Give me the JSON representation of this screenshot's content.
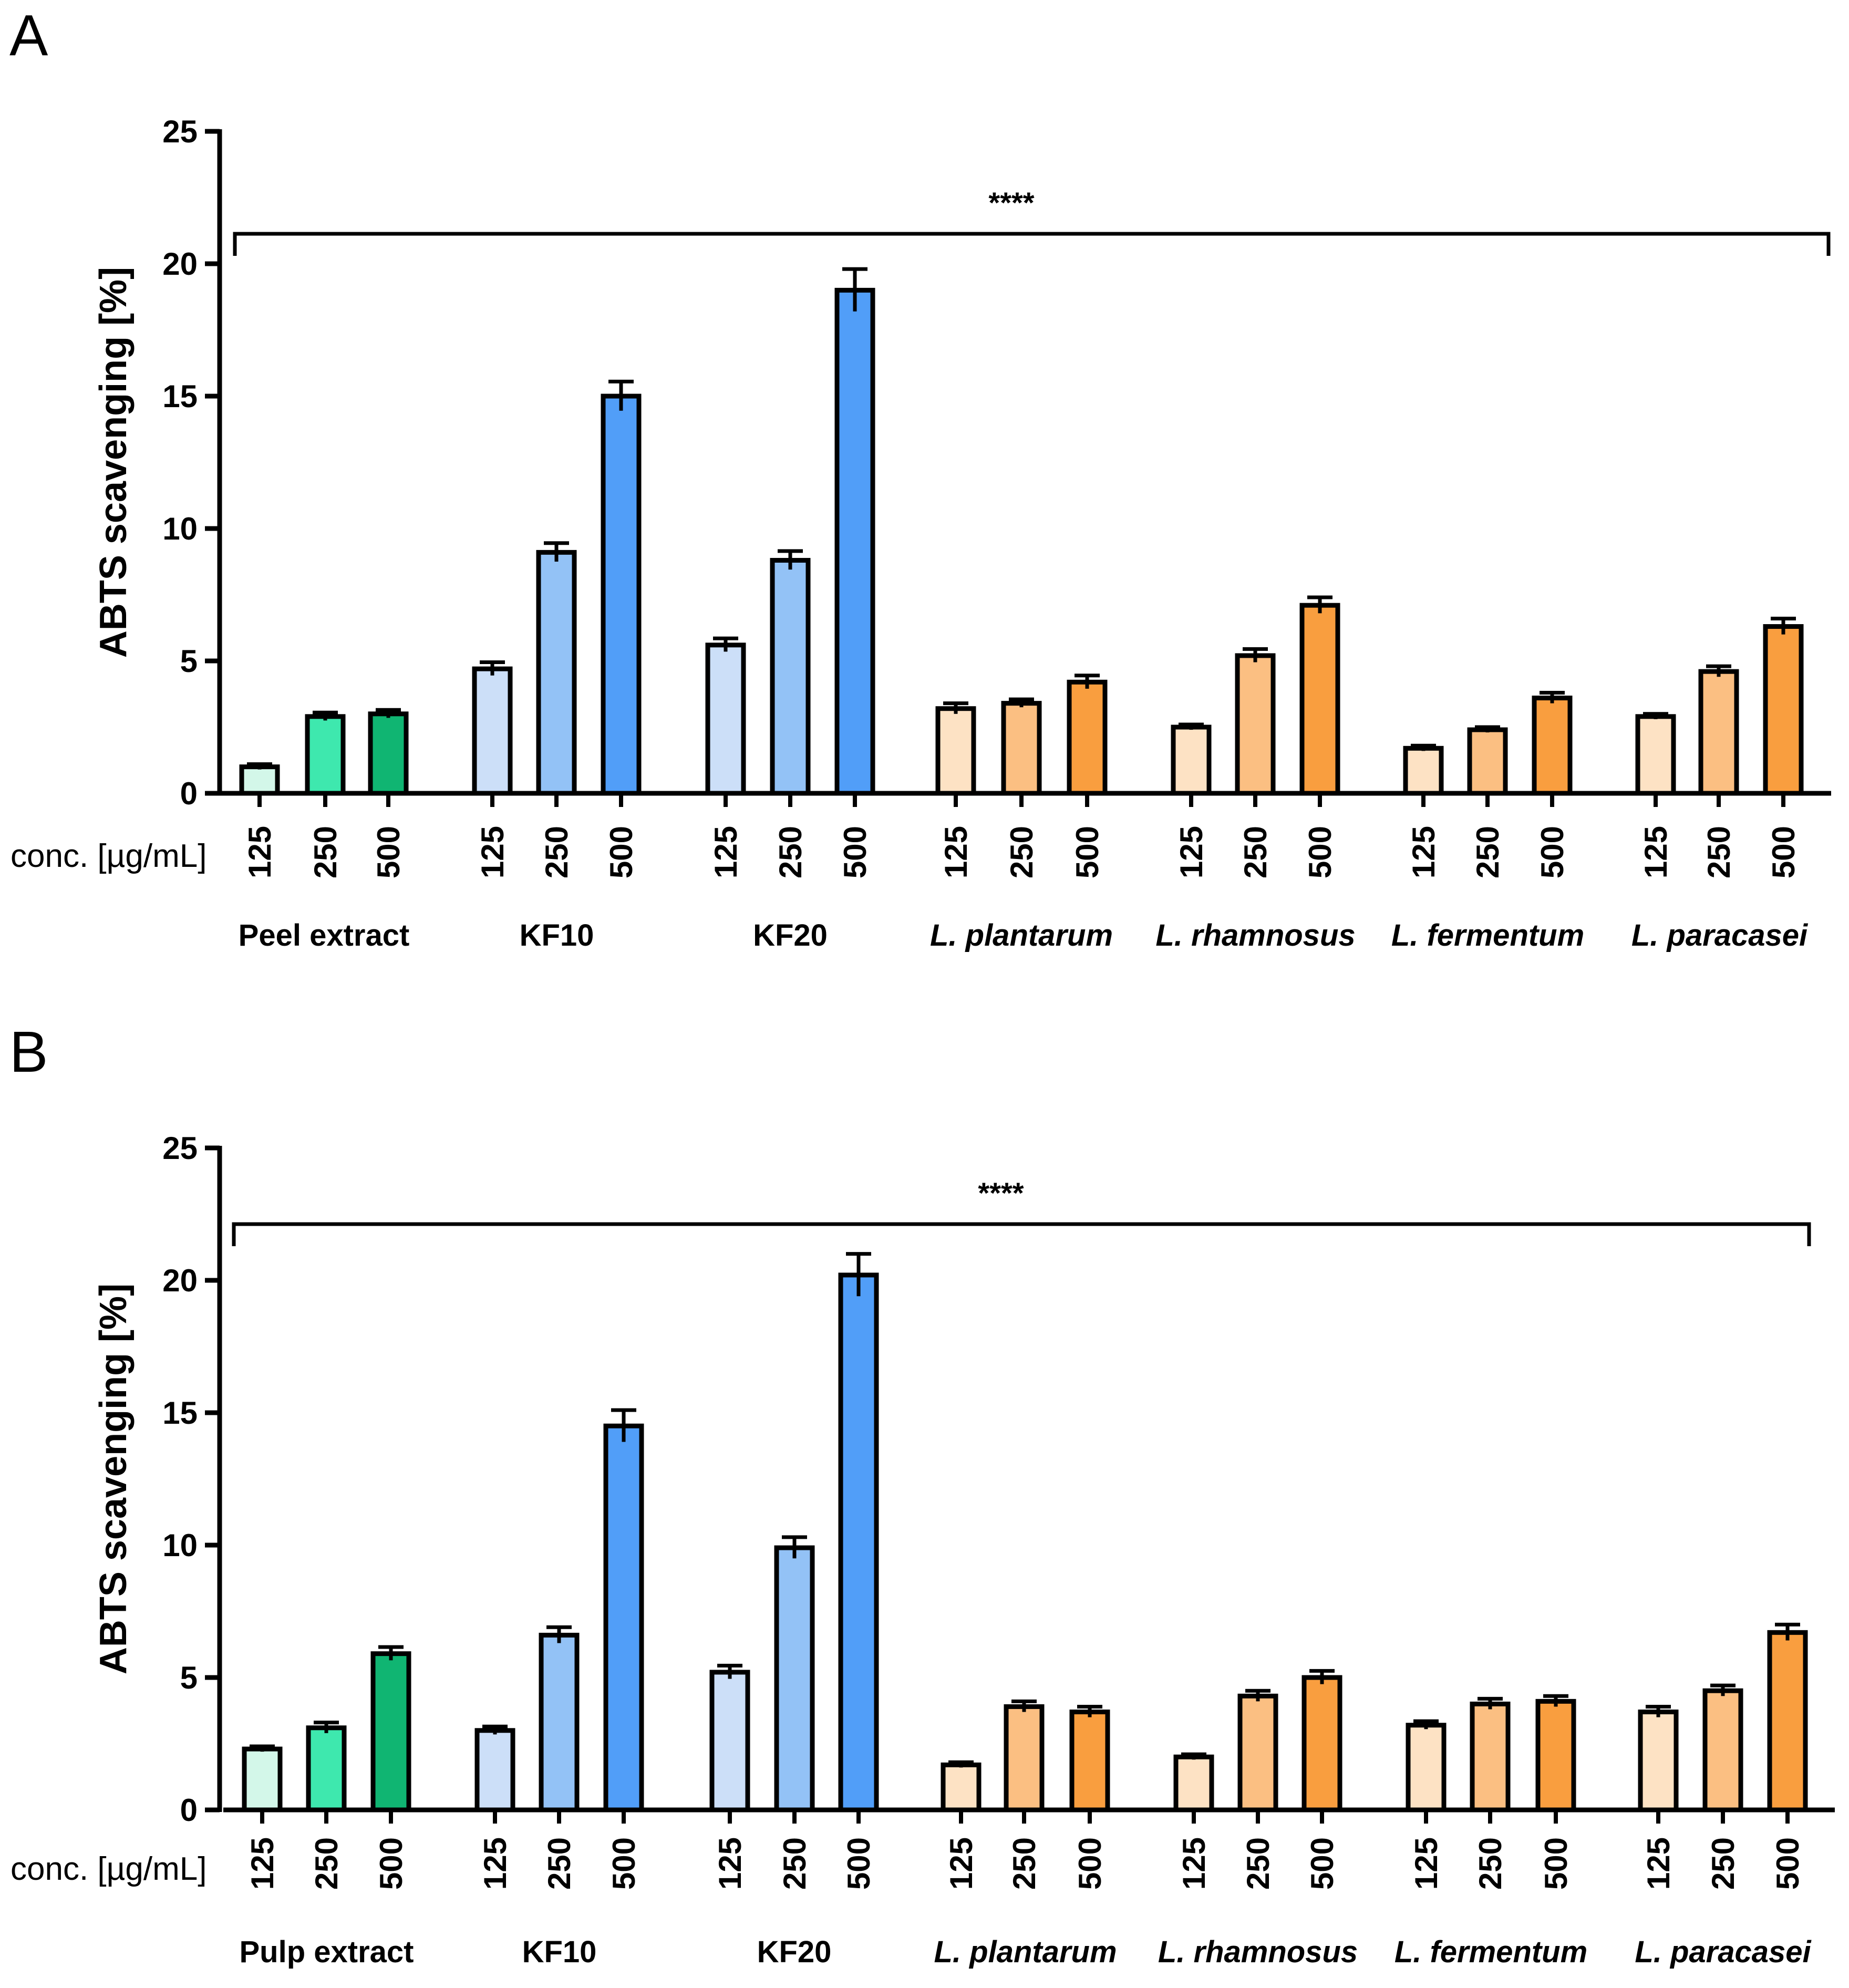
{
  "colors": {
    "green": [
      "#d3f7e9",
      "#3ee8ae",
      "#10b572"
    ],
    "blue": [
      "#ccdff8",
      "#93c2f6",
      "#519ef8"
    ],
    "orange": [
      "#fde2c4",
      "#fbbf82",
      "#f99e3f"
    ]
  },
  "chart_data": [
    {
      "type": "bar",
      "panel": "A",
      "ylabel": "ABTS scavenging [%]",
      "ylim": [
        0,
        25
      ],
      "yticks": [
        "0",
        "5",
        "10",
        "15",
        "20",
        "25"
      ],
      "conc_label": "conc. [µg/mL]",
      "significance": "****",
      "groups": [
        {
          "label": "Peel extract",
          "italic": false,
          "palette": "green",
          "concentrations": [
            "125",
            "250",
            "500"
          ],
          "values": [
            1.0,
            2.9,
            3.0
          ],
          "errors": [
            0.1,
            0.15,
            0.15
          ]
        },
        {
          "label": "KF10",
          "italic": false,
          "palette": "blue",
          "concentrations": [
            "125",
            "250",
            "500"
          ],
          "values": [
            4.7,
            9.1,
            15.0
          ],
          "errors": [
            0.25,
            0.35,
            0.55
          ]
        },
        {
          "label": "KF20",
          "italic": false,
          "palette": "blue",
          "concentrations": [
            "125",
            "250",
            "500"
          ],
          "values": [
            5.6,
            8.8,
            19.0
          ],
          "errors": [
            0.25,
            0.35,
            0.8
          ]
        },
        {
          "label": "L. plantarum",
          "italic": true,
          "palette": "orange",
          "concentrations": [
            "125",
            "250",
            "500"
          ],
          "values": [
            3.2,
            3.4,
            4.2
          ],
          "errors": [
            0.2,
            0.15,
            0.25
          ]
        },
        {
          "label": "L. rhamnosus",
          "italic": true,
          "palette": "orange",
          "concentrations": [
            "125",
            "250",
            "500"
          ],
          "values": [
            2.5,
            5.2,
            7.1
          ],
          "errors": [
            0.1,
            0.25,
            0.3
          ]
        },
        {
          "label": "L. fermentum",
          "italic": true,
          "palette": "orange",
          "concentrations": [
            "125",
            "250",
            "500"
          ],
          "values": [
            1.7,
            2.4,
            3.6
          ],
          "errors": [
            0.1,
            0.1,
            0.2
          ]
        },
        {
          "label": "L. paracasei",
          "italic": true,
          "palette": "orange",
          "concentrations": [
            "125",
            "250",
            "500"
          ],
          "values": [
            2.9,
            4.6,
            6.3
          ],
          "errors": [
            0.1,
            0.2,
            0.3
          ]
        }
      ]
    },
    {
      "type": "bar",
      "panel": "B",
      "ylabel": "ABTS scavenging [%]",
      "ylim": [
        0,
        25
      ],
      "yticks": [
        "0",
        "5",
        "10",
        "15",
        "20",
        "25"
      ],
      "conc_label": "conc. [µg/mL]",
      "significance": "****",
      "groups": [
        {
          "label": "Pulp extract",
          "italic": false,
          "palette": "green",
          "concentrations": [
            "125",
            "250",
            "500"
          ],
          "values": [
            2.3,
            3.1,
            5.9
          ],
          "errors": [
            0.1,
            0.2,
            0.25
          ]
        },
        {
          "label": "KF10",
          "italic": false,
          "palette": "blue",
          "concentrations": [
            "125",
            "250",
            "500"
          ],
          "values": [
            3.0,
            6.6,
            14.5
          ],
          "errors": [
            0.15,
            0.3,
            0.6
          ]
        },
        {
          "label": "KF20",
          "italic": false,
          "palette": "blue",
          "concentrations": [
            "125",
            "250",
            "500"
          ],
          "values": [
            5.2,
            9.9,
            20.2
          ],
          "errors": [
            0.25,
            0.4,
            0.8
          ]
        },
        {
          "label": "L. plantarum",
          "italic": true,
          "palette": "orange",
          "concentrations": [
            "125",
            "250",
            "500"
          ],
          "values": [
            1.7,
            3.9,
            3.7
          ],
          "errors": [
            0.1,
            0.2,
            0.2
          ]
        },
        {
          "label": "L. rhamnosus",
          "italic": true,
          "palette": "orange",
          "concentrations": [
            "125",
            "250",
            "500"
          ],
          "values": [
            2.0,
            4.3,
            5.0
          ],
          "errors": [
            0.1,
            0.2,
            0.25
          ]
        },
        {
          "label": "L. fermentum",
          "italic": true,
          "palette": "orange",
          "concentrations": [
            "125",
            "250",
            "500"
          ],
          "values": [
            3.2,
            4.0,
            4.1
          ],
          "errors": [
            0.15,
            0.2,
            0.2
          ]
        },
        {
          "label": "L. paracasei",
          "italic": true,
          "palette": "orange",
          "concentrations": [
            "125",
            "250",
            "500"
          ],
          "values": [
            3.7,
            4.5,
            6.7
          ],
          "errors": [
            0.2,
            0.2,
            0.3
          ]
        }
      ]
    }
  ]
}
